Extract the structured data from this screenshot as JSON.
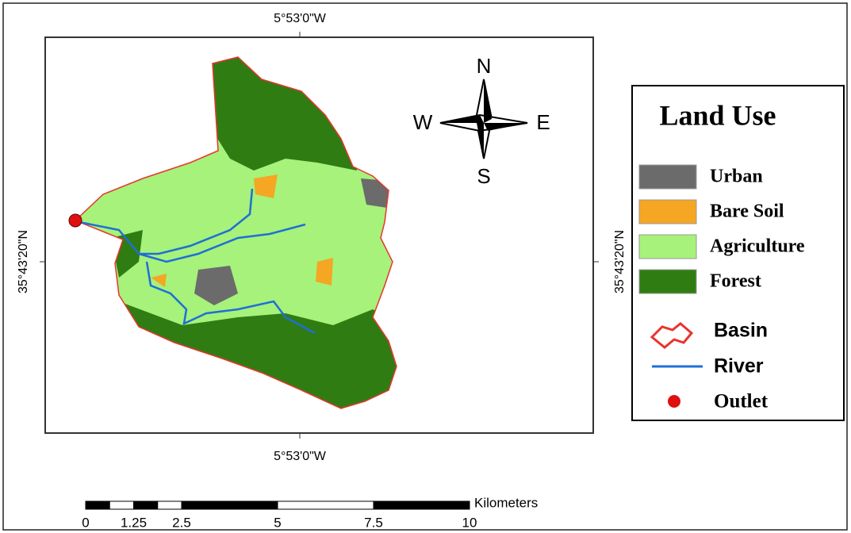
{
  "coordinates": {
    "top": "5°53'0\"W",
    "bottom": "5°53'0\"W",
    "left": "35°43'20\"N",
    "right": "35°43'20\"N"
  },
  "compass": {
    "north": "N",
    "south": "S",
    "east": "E",
    "west": "W"
  },
  "legend": {
    "title": "Land Use",
    "classes": [
      {
        "label": "Urban",
        "color": "#6b6b6b"
      },
      {
        "label": "Bare Soil",
        "color": "#f5a623"
      },
      {
        "label": "Agriculture",
        "color": "#a6f27a"
      },
      {
        "label": "Forest",
        "color": "#2f7d12"
      }
    ],
    "symbols": {
      "basin": "Basin",
      "river": "River",
      "outlet": "Outlet"
    }
  },
  "scale_bar": {
    "unit": "Kilometers",
    "ticks": [
      0,
      1.25,
      2.5,
      5,
      7.5,
      10
    ]
  }
}
